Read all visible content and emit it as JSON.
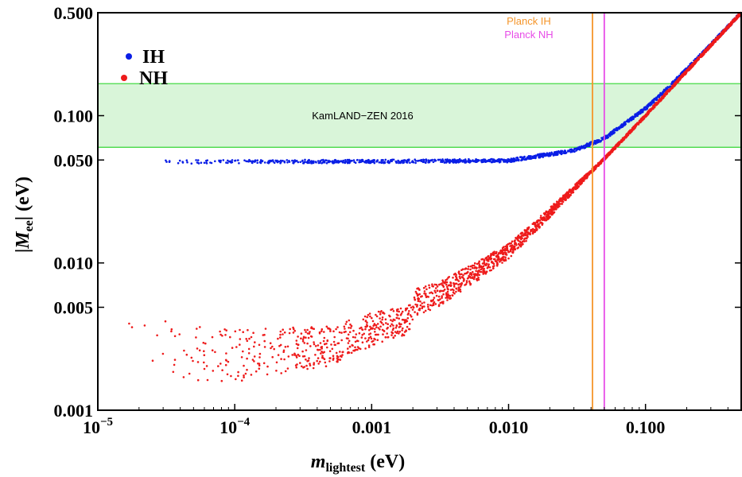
{
  "chart_data": {
    "type": "scatter",
    "x_scale": "log",
    "y_scale": "log",
    "xlim": [
      1e-05,
      0.5
    ],
    "ylim": [
      0.001,
      0.5
    ],
    "x_ticks": [
      {
        "value": 1e-05,
        "base": "10",
        "exp": "−5"
      },
      {
        "value": 0.0001,
        "base": "10",
        "exp": "−4"
      },
      {
        "value": 0.001,
        "label": "0.001"
      },
      {
        "value": 0.01,
        "label": "0.010"
      },
      {
        "value": 0.1,
        "label": "0.100"
      }
    ],
    "y_ticks": [
      {
        "value": 0.001,
        "label": "0.001"
      },
      {
        "value": 0.005,
        "label": "0.005"
      },
      {
        "value": 0.01,
        "label": "0.010"
      },
      {
        "value": 0.05,
        "label": "0.050"
      },
      {
        "value": 0.1,
        "label": "0.100"
      },
      {
        "value": 0.5,
        "label": "0.500"
      }
    ],
    "xlabel": {
      "main": "m",
      "sub": "lightest",
      "unit": " (eV)"
    },
    "ylabel": {
      "bar": "|",
      "main": "M",
      "sub": "ee",
      "after": "| (eV)"
    },
    "series": [
      {
        "name": "IH",
        "color": "#0a1ee6",
        "points": [
          [
            3e-05,
            0.0485
          ],
          [
            0.0001,
            0.0488
          ],
          [
            0.001,
            0.0489
          ],
          [
            0.01,
            0.0495
          ],
          [
            0.03,
            0.058
          ],
          [
            0.05,
            0.07
          ],
          [
            0.1,
            0.112
          ],
          [
            0.15,
            0.158
          ],
          [
            0.3,
            0.303
          ],
          [
            0.5,
            0.5
          ]
        ]
      },
      {
        "name": "NH",
        "color": "#ee1b1b",
        "points": [
          [
            1.5e-05,
            0.0035
          ],
          [
            0.0001,
            0.003
          ],
          [
            0.0005,
            0.0035
          ],
          [
            0.001,
            0.0045
          ],
          [
            0.003,
            0.006
          ],
          [
            0.005,
            0.008
          ],
          [
            0.01,
            0.012
          ],
          [
            0.02,
            0.022
          ],
          [
            0.05,
            0.051
          ],
          [
            0.1,
            0.1
          ],
          [
            0.3,
            0.3
          ],
          [
            0.5,
            0.5
          ]
        ]
      }
    ],
    "legend": {
      "position": "top-left",
      "entries": [
        "IH",
        "NH"
      ]
    },
    "kamland_band": {
      "label": "KamLAND−ZEN 2016",
      "ymin": 0.061,
      "ymax": 0.165,
      "fill": "#d9f5d9",
      "stroke": "#33d633"
    },
    "vertical_lines": [
      {
        "label": "Planck IH",
        "x": 0.041,
        "color": "#f5952a"
      },
      {
        "label": "Planck NH",
        "x": 0.05,
        "color": "#e74ce7"
      }
    ]
  }
}
